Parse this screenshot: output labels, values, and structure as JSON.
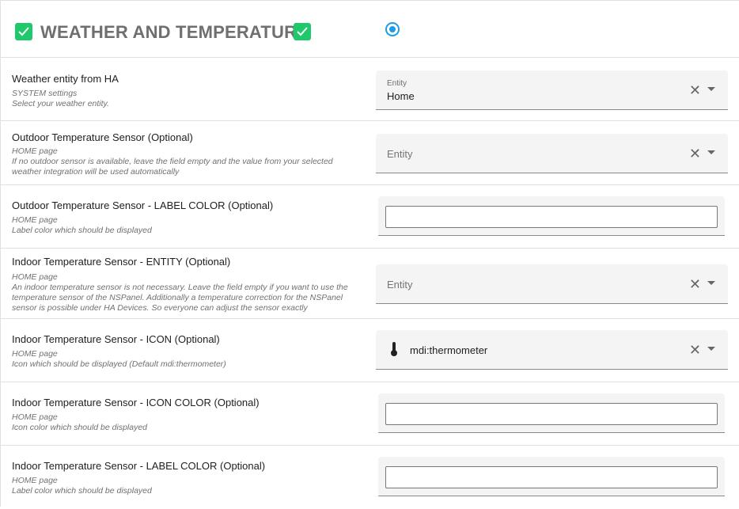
{
  "header": {
    "title": "WEATHER AND TEMPERATURE",
    "check_icon": "checkbox-checked-icon",
    "accent": "#1ec96b",
    "radio_color": "#1e9bf0"
  },
  "rows": [
    {
      "label": "Weather entity from HA",
      "desc1": "SYSTEM settings",
      "desc2": "Select your weather entity.",
      "field_label": "Entity",
      "value": "Home"
    },
    {
      "label": "Outdoor Temperature Sensor (Optional)",
      "desc1": "HOME page",
      "desc2": "If no outdoor sensor is available, leave the field empty and the value from your selected weather integration will be used automatically",
      "placeholder": "Entity"
    },
    {
      "label": "Outdoor Temperature Sensor - LABEL COLOR (Optional)",
      "desc1": "HOME page",
      "desc2": "Label color which should be displayed",
      "value": ""
    },
    {
      "label": "Indoor Temperature Sensor - ENTITY (Optional)",
      "desc1": "HOME page",
      "desc2": "An indoor temperature sensor is not necessary. Leave the field empty if you want to use the temperature sensor of the NSPanel. Additionally a temperature correction for the NSPanel sensor is possible under HA Devices. So everyone can adjust the sensor exactly",
      "placeholder": "Entity"
    },
    {
      "label": "Indoor Temperature Sensor - ICON (Optional)",
      "desc1": "HOME page",
      "desc2": "Icon which should be displayed (Default mdi:thermometer)",
      "value": "mdi:thermometer",
      "icon": "thermometer-icon"
    },
    {
      "label": "Indoor Temperature Sensor - ICON COLOR (Optional)",
      "desc1": "HOME page",
      "desc2": "Icon color which should be displayed",
      "value": ""
    },
    {
      "label": "Indoor Temperature Sensor - LABEL COLOR (Optional)",
      "desc1": "HOME page",
      "desc2": "Label color which should be displayed",
      "value": ""
    }
  ]
}
